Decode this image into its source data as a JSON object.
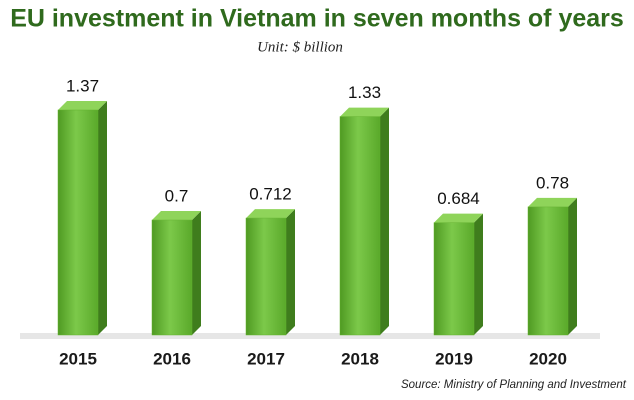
{
  "chart_data": {
    "type": "bar",
    "title": "EU investment in Vietnam in seven months of years",
    "subtitle": "Unit: $ billion",
    "categories": [
      "2015",
      "2016",
      "2017",
      "2018",
      "2019",
      "2020"
    ],
    "values": [
      1.37,
      0.7,
      0.712,
      1.33,
      0.684,
      0.78
    ],
    "color": "#63b22e",
    "source": "Source: Ministry of Planning and Investment"
  }
}
